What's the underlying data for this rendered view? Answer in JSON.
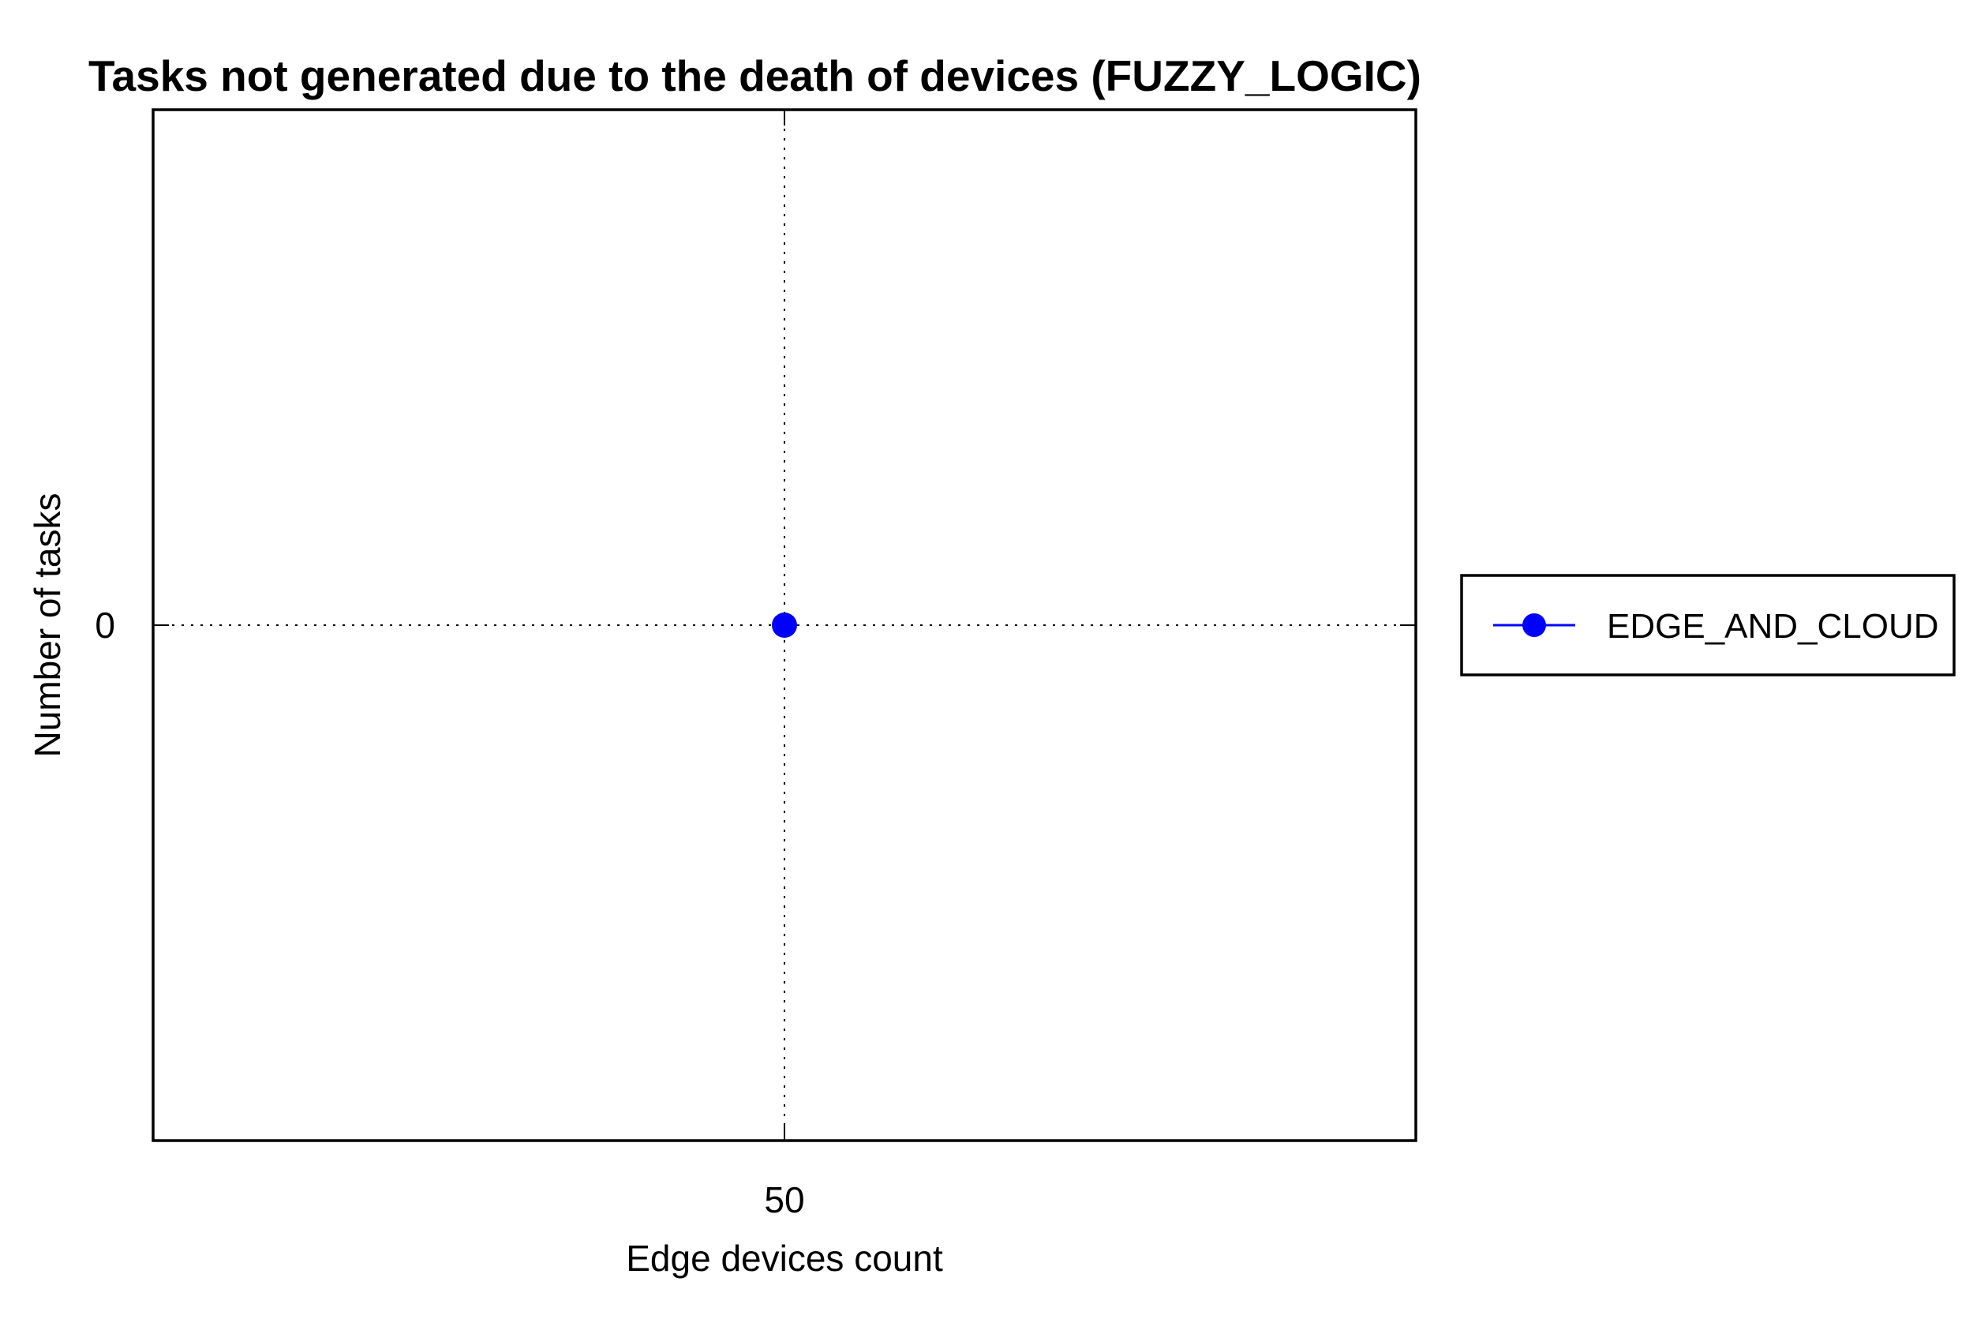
{
  "chart_data": {
    "type": "line",
    "title": "Tasks not generated due to the death of devices (FUZZY_LOGIC)",
    "xlabel": "Edge devices count",
    "ylabel": "Number of tasks",
    "x_ticks": [
      "50"
    ],
    "y_ticks": [
      "0"
    ],
    "xlim": [
      0,
      100
    ],
    "ylim": [
      -1,
      1
    ],
    "grid": true,
    "legend_position": "right",
    "series": [
      {
        "name": "EDGE_AND_CLOUD",
        "color": "#0000ff",
        "marker": "circle",
        "x": [
          50
        ],
        "y": [
          0
        ]
      }
    ]
  }
}
